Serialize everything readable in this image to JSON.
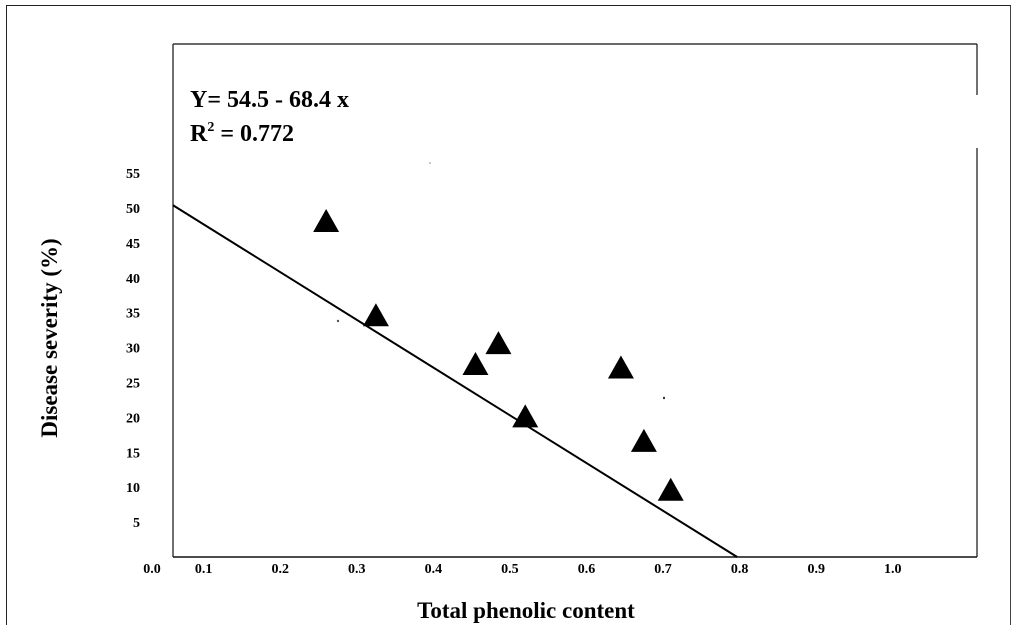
{
  "chart_data": {
    "type": "scatter",
    "title": "",
    "xlabel": "Total phenolic content",
    "ylabel": "Disease severity (%)",
    "x_origin_label": "0.0",
    "x_ticks": [
      "0.1",
      "0.2",
      "0.3",
      "0.4",
      "0.5",
      "0.6",
      "0.7",
      "0.8",
      "0.9",
      "1.0"
    ],
    "x_tick_values": [
      0.1,
      0.2,
      0.3,
      0.4,
      0.5,
      0.6,
      0.7,
      0.8,
      0.9,
      1.0
    ],
    "y_ticks": [
      "5",
      "10",
      "15",
      "20",
      "25",
      "30",
      "35",
      "40",
      "45",
      "50",
      "55"
    ],
    "y_tick_values": [
      5,
      10,
      15,
      20,
      25,
      30,
      35,
      40,
      45,
      50,
      55
    ],
    "xlim": [
      0.06,
      1.11
    ],
    "ylim": [
      0,
      73.5
    ],
    "marker": "triangle",
    "marker_color": "#000000",
    "points": [
      {
        "x": 0.26,
        "y": 48
      },
      {
        "x": 0.325,
        "y": 34.5
      },
      {
        "x": 0.455,
        "y": 27.5
      },
      {
        "x": 0.485,
        "y": 30.5
      },
      {
        "x": 0.52,
        "y": 20
      },
      {
        "x": 0.645,
        "y": 27
      },
      {
        "x": 0.675,
        "y": 16.5
      },
      {
        "x": 0.71,
        "y": 9.5
      }
    ],
    "regression": {
      "intercept": 54.5,
      "slope": -68.4,
      "equation": "Y= 54.5 - 68.4 x",
      "r2_prefix": "R",
      "r2_superscript": "2",
      "r2_value": " = 0.772"
    },
    "grid": false,
    "legend": "none"
  }
}
